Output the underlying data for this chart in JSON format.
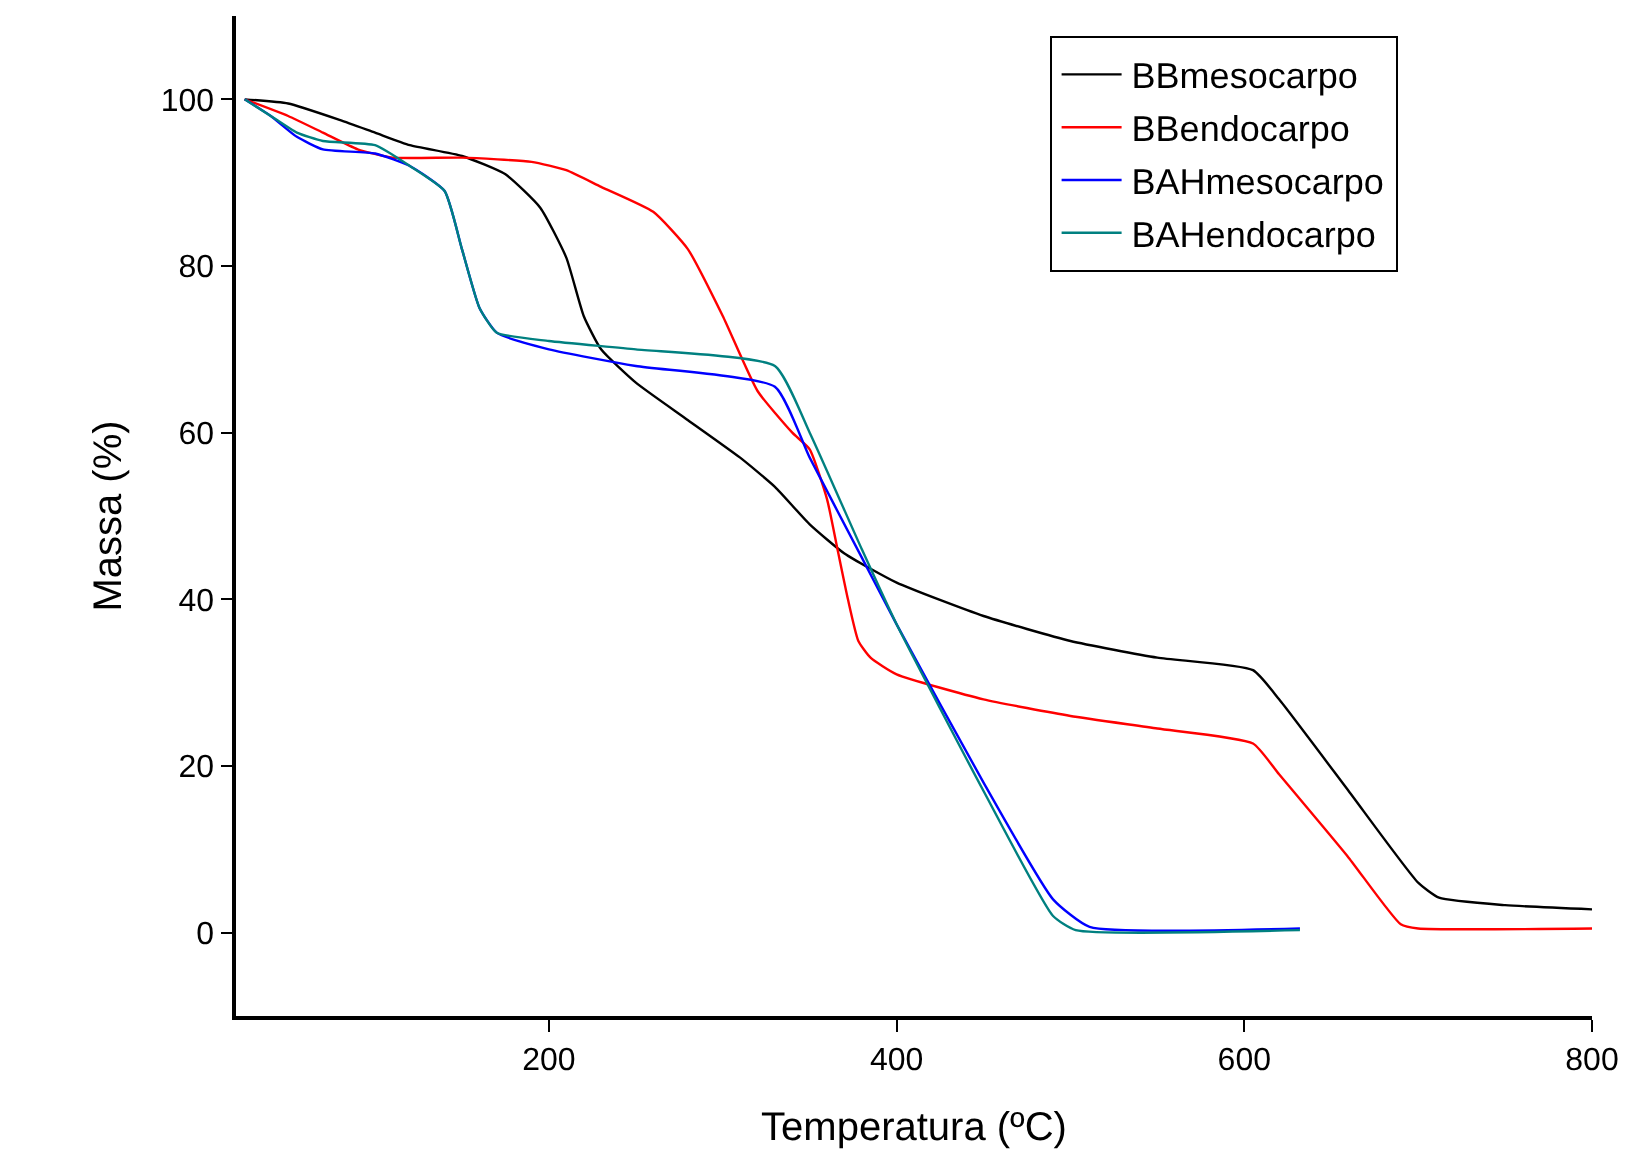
{
  "chart_data": {
    "type": "line",
    "xlabel": "Temperatura (ºC)",
    "ylabel": "Massa (%)",
    "xlim": [
      20,
      800
    ],
    "ylim": [
      -10,
      110
    ],
    "xticks": [
      200,
      400,
      600,
      800
    ],
    "yticks": [
      0,
      20,
      40,
      60,
      80,
      100
    ],
    "grid": false,
    "legend": "top right",
    "marker": "none",
    "line_style": "solid",
    "series": [
      {
        "name": "BBmesocarpo",
        "color": "#000000",
        "x": [
          25,
          50,
          80,
          100,
          120,
          150,
          175,
          195,
          210,
          220,
          230,
          250,
          280,
          310,
          330,
          350,
          370,
          400,
          450,
          500,
          550,
          605,
          620,
          660,
          700,
          712,
          750,
          800
        ],
        "values": [
          100,
          99.5,
          97.5,
          96,
          94.5,
          93.2,
          91,
          87,
          81,
          74,
          70,
          66,
          61.5,
          57,
          53.5,
          49,
          45.5,
          42,
          38,
          35,
          33,
          31.5,
          28,
          17,
          6,
          4.2,
          3.3,
          2.8
        ]
      },
      {
        "name": "BBendocarpo",
        "color": "#ff0000",
        "x": [
          25,
          50,
          70,
          90,
          110,
          150,
          190,
          210,
          230,
          260,
          280,
          300,
          320,
          340,
          350,
          360,
          366,
          372,
          378,
          385,
          400,
          450,
          500,
          550,
          605,
          620,
          660,
          690,
          700,
          800
        ],
        "values": [
          100,
          98,
          96,
          94,
          93,
          93,
          92.5,
          91.5,
          89.5,
          86.5,
          82,
          74,
          65,
          60,
          58,
          52,
          46,
          40,
          35,
          33,
          31,
          28,
          26,
          24.5,
          22.7,
          19,
          9,
          1,
          0.5,
          0.5
        ]
      },
      {
        "name": "BAHmesocarpo",
        "color": "#0000ff",
        "x": [
          25,
          40,
          55,
          70,
          100,
          120,
          140,
          150,
          160,
          170,
          200,
          250,
          330,
          350,
          380,
          400,
          450,
          490,
          511,
          632
        ],
        "values": [
          100,
          98,
          95.5,
          94,
          93.5,
          92,
          89,
          82,
          75,
          72,
          70,
          68,
          65.5,
          57,
          45,
          37,
          18,
          4,
          0.7,
          0.5
        ]
      },
      {
        "name": "BAHendocarpo",
        "color": "#008080",
        "x": [
          25,
          40,
          55,
          70,
          100,
          120,
          140,
          150,
          160,
          170,
          200,
          250,
          330,
          350,
          380,
          400,
          450,
          490,
          503,
          632
        ],
        "values": [
          100,
          98,
          96,
          95,
          94.5,
          92,
          89,
          82,
          75,
          72,
          71,
          70,
          68,
          60,
          46,
          37,
          17,
          2,
          0.3,
          0.3
        ]
      }
    ]
  }
}
